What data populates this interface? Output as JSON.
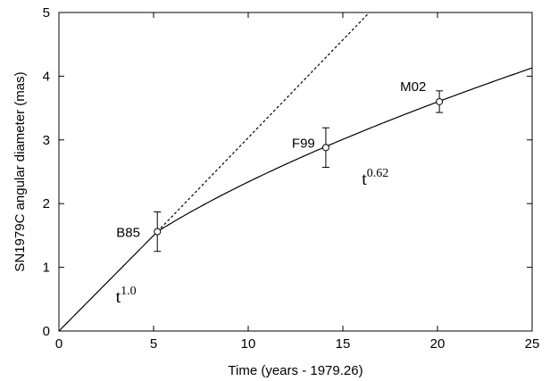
{
  "chart_data": {
    "type": "line",
    "title": "",
    "xlabel": "Time (years - 1979.26)",
    "ylabel": "SN1979C angular diameter (mas)",
    "xlim": [
      0,
      25
    ],
    "ylim": [
      0,
      5
    ],
    "x_ticks": [
      0,
      5,
      10,
      15,
      20,
      25
    ],
    "y_ticks": [
      0,
      1,
      2,
      3,
      4,
      5
    ],
    "grid": false,
    "legend": "none",
    "series": [
      {
        "style": "solid",
        "model": "free expansion t^1.0 until t=5.2, then deceleration t^0.62",
        "x": [
          0,
          1,
          2,
          3,
          4,
          5.2,
          6,
          8,
          10,
          12,
          14,
          16,
          18,
          20,
          22,
          25
        ],
        "y": [
          0,
          0.3,
          0.6,
          0.9,
          1.2,
          1.56,
          1.71,
          2.03,
          2.34,
          2.62,
          2.88,
          3.13,
          3.37,
          3.6,
          3.82,
          4.12
        ]
      },
      {
        "style": "dashed",
        "model": "linear t^1.0 extrapolation",
        "x": [
          5.2,
          16.4
        ],
        "y": [
          1.56,
          5.0
        ]
      }
    ],
    "points": [
      {
        "label": "B85",
        "x": 5.2,
        "y": 1.56,
        "yerr": 0.31
      },
      {
        "label": "F99",
        "x": 14.1,
        "y": 2.88,
        "yerr": 0.31
      },
      {
        "label": "M02",
        "x": 20.1,
        "y": 3.6,
        "yerr": 0.17
      }
    ],
    "annotations": [
      {
        "base": "t",
        "exponent": "1.0",
        "x": 3.0,
        "y": 0.45
      },
      {
        "base": "t",
        "exponent": "0.62",
        "x": 16.0,
        "y": 2.3
      }
    ]
  }
}
